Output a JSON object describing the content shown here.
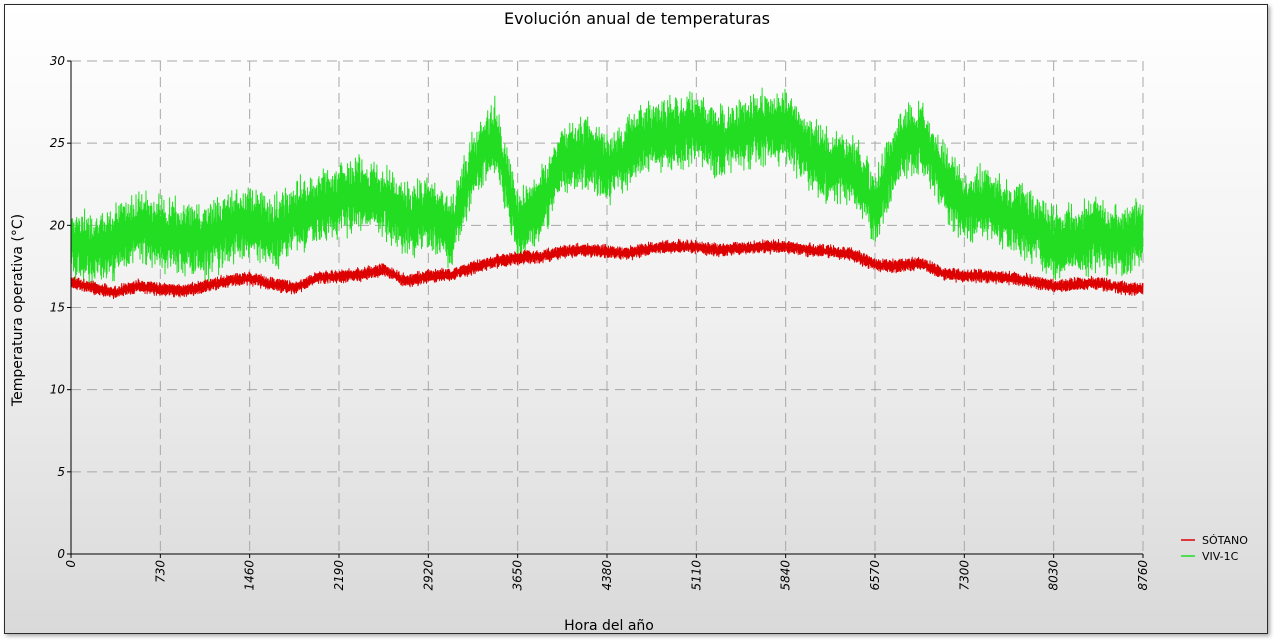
{
  "chart_data": {
    "type": "line",
    "title": "Evolución anual de temperaturas",
    "xlabel": "Hora del año",
    "ylabel": "Temperatura operativa (°C)",
    "xlim": [
      0,
      8760
    ],
    "ylim": [
      0,
      30
    ],
    "x_ticks": [
      "0",
      "730",
      "1460",
      "2190",
      "2920",
      "3650",
      "4380",
      "5110",
      "5840",
      "6570",
      "7300",
      "8030",
      "8760"
    ],
    "y_ticks": [
      "0",
      "5",
      "10",
      "15",
      "20",
      "25",
      "30"
    ],
    "grid": true,
    "legend_position": "bottom-right",
    "series": [
      {
        "name": "SÓTANO",
        "color": "#dd0000",
        "x": [
          0,
          183,
          365,
          548,
          730,
          913,
          1095,
          1278,
          1460,
          1643,
          1825,
          2008,
          2190,
          2373,
          2555,
          2738,
          2920,
          3103,
          3285,
          3468,
          3650,
          3833,
          4015,
          4198,
          4380,
          4563,
          4745,
          4928,
          5110,
          5293,
          5475,
          5658,
          5840,
          6023,
          6205,
          6388,
          6570,
          6753,
          6935,
          7118,
          7300,
          7483,
          7665,
          7848,
          8030,
          8213,
          8395,
          8578,
          8760
        ],
        "base": [
          16.5,
          16.2,
          15.9,
          16.3,
          16.1,
          16.0,
          16.3,
          16.6,
          16.8,
          16.4,
          16.2,
          16.8,
          16.9,
          17.0,
          17.3,
          16.6,
          16.9,
          17.0,
          17.4,
          17.8,
          18.0,
          18.1,
          18.4,
          18.5,
          18.4,
          18.3,
          18.6,
          18.7,
          18.7,
          18.5,
          18.6,
          18.7,
          18.7,
          18.5,
          18.4,
          18.2,
          17.6,
          17.5,
          17.7,
          17.1,
          16.9,
          16.9,
          16.8,
          16.6,
          16.3,
          16.4,
          16.5,
          16.2,
          16.1
        ],
        "amplitude": 0.4
      },
      {
        "name": "VIV-1C",
        "color": "#22dd22",
        "x": [
          0,
          183,
          365,
          548,
          730,
          913,
          1095,
          1278,
          1460,
          1643,
          1825,
          2008,
          2190,
          2373,
          2555,
          2738,
          2920,
          3103,
          3285,
          3468,
          3650,
          3833,
          4015,
          4198,
          4380,
          4563,
          4745,
          4928,
          5110,
          5293,
          5475,
          5658,
          5840,
          6023,
          6205,
          6388,
          6570,
          6753,
          6935,
          7118,
          7300,
          7483,
          7665,
          7848,
          8030,
          8213,
          8395,
          8578,
          8760
        ],
        "base": [
          19.0,
          18.5,
          19.0,
          20.0,
          19.5,
          19.2,
          19.0,
          19.8,
          20.3,
          19.5,
          20.5,
          21.0,
          21.5,
          22.0,
          21.5,
          20.3,
          20.8,
          19.5,
          23.5,
          25.5,
          20.0,
          21.0,
          24.0,
          24.5,
          23.5,
          24.5,
          25.5,
          25.5,
          26.0,
          25.0,
          25.5,
          26.0,
          26.0,
          24.5,
          23.5,
          23.5,
          21.0,
          24.5,
          25.5,
          23.0,
          21.0,
          21.5,
          20.5,
          20.0,
          19.0,
          19.0,
          19.5,
          19.0,
          19.5
        ],
        "amplitude": 2.2
      }
    ]
  }
}
